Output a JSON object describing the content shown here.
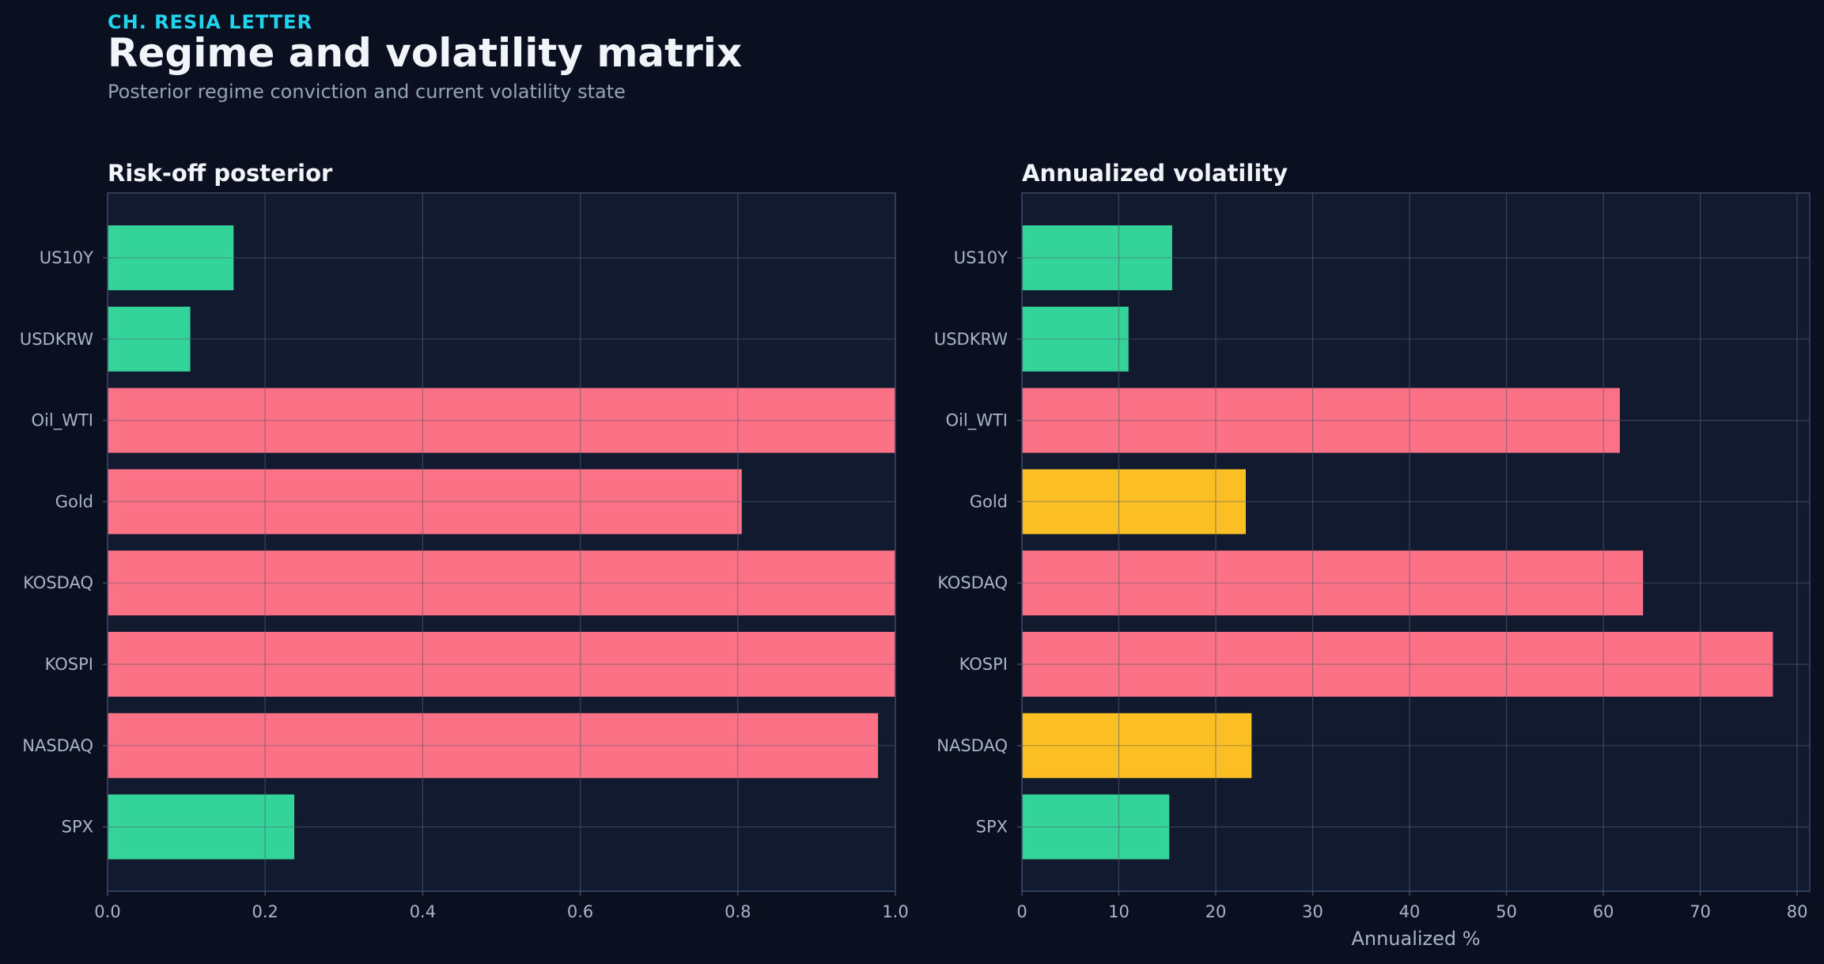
{
  "header": {
    "kicker": "CH. RESIA LETTER",
    "title": "Regime and volatility matrix",
    "subtitle": "Posterior regime conviction and current volatility state"
  },
  "colors": {
    "background": "#0b1020",
    "plot_background": "#111a2e",
    "green": "#34d399",
    "pink": "#fb7185",
    "yellow": "#fbbf24",
    "grid": "#1f2a40",
    "spine": "#3a4766"
  },
  "chart_data": [
    {
      "type": "bar",
      "orientation": "horizontal",
      "title": "Risk-off posterior",
      "xlabel": "",
      "ylabel": "",
      "categories": [
        "US10Y",
        "USDKRW",
        "Oil_WTI",
        "Gold",
        "KOSDAQ",
        "KOSPI",
        "NASDAQ",
        "SPX"
      ],
      "values": [
        0.16,
        0.105,
        1.0,
        0.805,
        1.0,
        1.0,
        0.978,
        0.237
      ],
      "bar_colors": [
        "green",
        "green",
        "pink",
        "pink",
        "pink",
        "pink",
        "pink",
        "green"
      ],
      "xlim": [
        0,
        1.0
      ],
      "xticks": [
        0,
        0.2,
        0.4,
        0.6,
        0.8,
        1.0
      ],
      "xtick_labels": [
        "0.0",
        "0.2",
        "0.4",
        "0.6",
        "0.8",
        "1.0"
      ],
      "grid": true
    },
    {
      "type": "bar",
      "orientation": "horizontal",
      "title": "Annualized volatility",
      "xlabel": "Annualized %",
      "ylabel": "",
      "categories": [
        "US10Y",
        "USDKRW",
        "Oil_WTI",
        "Gold",
        "KOSDAQ",
        "KOSPI",
        "NASDAQ",
        "SPX"
      ],
      "values": [
        15.5,
        11.0,
        61.7,
        23.1,
        64.1,
        77.5,
        23.7,
        15.2
      ],
      "bar_colors": [
        "green",
        "green",
        "pink",
        "yellow",
        "pink",
        "pink",
        "yellow",
        "green"
      ],
      "xlim": [
        0,
        81.3
      ],
      "xticks": [
        0,
        10,
        20,
        30,
        40,
        50,
        60,
        70,
        80
      ],
      "xtick_labels": [
        "0",
        "10",
        "20",
        "30",
        "40",
        "50",
        "60",
        "70",
        "80"
      ],
      "grid": true
    }
  ]
}
